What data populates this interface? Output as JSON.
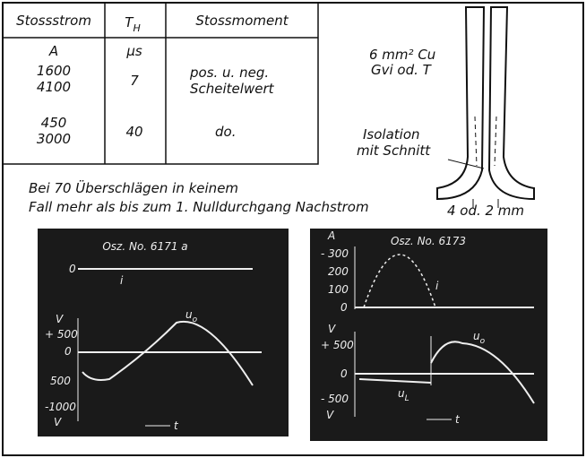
{
  "table": {
    "headers": [
      "Stossstrom",
      {
        "text": "T",
        "sub": "H"
      },
      "Stossmoment"
    ],
    "units": [
      "A",
      "µs"
    ],
    "rows": [
      [
        [
          "1600",
          "4100"
        ],
        "7",
        [
          "pos. u. neg.",
          "Scheitelwert"
        ]
      ],
      [
        [
          "450",
          "3000"
        ],
        "40",
        "do."
      ]
    ]
  },
  "electrode": {
    "material": [
      "6 mm² Cu",
      "Gvi od. T"
    ],
    "insulation": [
      "Isolation",
      "mit Schnitt"
    ],
    "width": "4 od. 2 mm"
  },
  "caption": [
    "Bei 70 Überschlägen in keinem",
    "Fall mehr als bis zum 1. Nulldurchgang Nachstrom"
  ],
  "oscillograms": [
    {
      "title": "Osz. No. 6171 a",
      "current_zero": "0",
      "current_label": "i",
      "voltage_unit": "V",
      "voltage_ticks": [
        "+ 500",
        "0",
        "500",
        "-1000"
      ],
      "voltage_unit_bottom": "V",
      "voltage_label": {
        "text": "u",
        "sub": "o"
      },
      "time_label": "t"
    },
    {
      "title": "Osz. No. 6173",
      "current_unit": "A",
      "current_ticks": [
        "- 300",
        "200",
        "100",
        "0"
      ],
      "current_label": "i",
      "voltage_unit": "V",
      "voltage_ticks": [
        "+ 500",
        "0",
        "- 500"
      ],
      "voltage_unit_bottom": "V",
      "voltage_label": {
        "text": "u",
        "sub": "o"
      },
      "arc_voltage_label": {
        "text": "u",
        "sub": "L"
      },
      "time_label": "t"
    }
  ]
}
